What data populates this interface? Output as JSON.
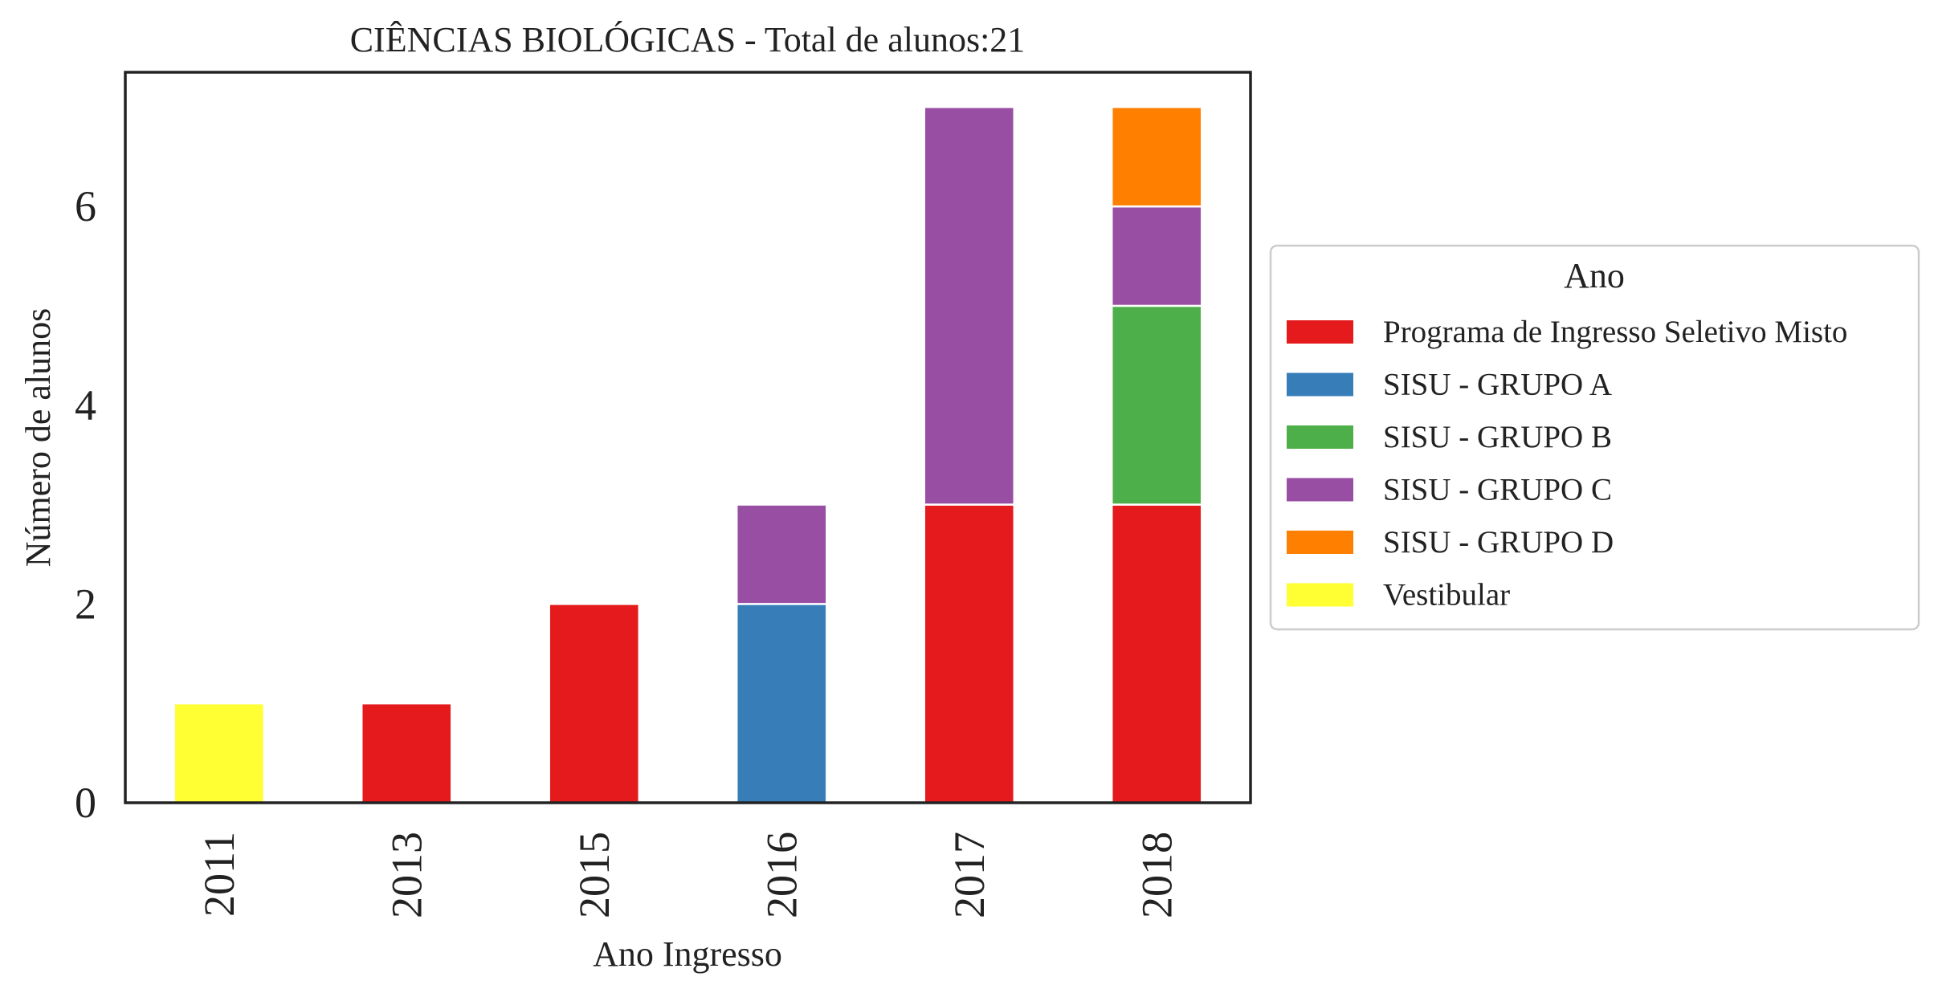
{
  "chart_data": {
    "type": "bar",
    "stacked": true,
    "title": "CIÊNCIAS BIOLÓGICAS - Total de alunos:21",
    "xlabel": "Ano Ingresso",
    "ylabel": "Número de alunos",
    "categories": [
      "2011",
      "2013",
      "2015",
      "2016",
      "2017",
      "2018"
    ],
    "ylim": [
      0,
      7.35
    ],
    "yticks": [
      0,
      2,
      4,
      6
    ],
    "grid": false,
    "legend": {
      "title": "Ano",
      "placement": "outside-right"
    },
    "series": [
      {
        "name": "Programa de Ingresso Seletivo Misto",
        "color": "#e41a1c",
        "values": [
          0,
          1,
          2,
          0,
          3,
          3
        ]
      },
      {
        "name": "SISU - GRUPO A",
        "color": "#377eb8",
        "values": [
          0,
          0,
          0,
          2,
          0,
          0
        ]
      },
      {
        "name": "SISU - GRUPO B",
        "color": "#4daf4a",
        "values": [
          0,
          0,
          0,
          0,
          0,
          2
        ]
      },
      {
        "name": "SISU - GRUPO C",
        "color": "#984ea3",
        "values": [
          0,
          0,
          0,
          1,
          4,
          1
        ]
      },
      {
        "name": "SISU - GRUPO D",
        "color": "#ff7f00",
        "values": [
          0,
          0,
          0,
          0,
          0,
          1
        ]
      },
      {
        "name": "Vestibular",
        "color": "#ffff33",
        "values": [
          1,
          0,
          0,
          0,
          0,
          0
        ]
      }
    ]
  }
}
